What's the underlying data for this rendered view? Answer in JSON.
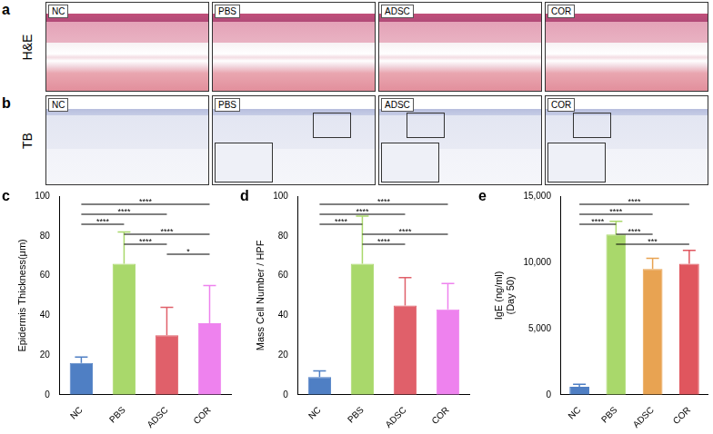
{
  "figure": {
    "rows": [
      {
        "letter": "a",
        "stain": "H&E",
        "panels": [
          "NC",
          "PBS",
          "ADSC",
          "COR"
        ]
      },
      {
        "letter": "b",
        "stain": "TB",
        "panels": [
          "NC",
          "PBS",
          "ADSC",
          "COR"
        ]
      }
    ]
  },
  "chart_data": [
    {
      "panel_label": "c",
      "type": "bar",
      "y_label": "Epidermis Thickness(μm)",
      "categories": [
        "NC",
        "PBS",
        "ADSC",
        "COR"
      ],
      "values": [
        16,
        66,
        30,
        36
      ],
      "errors": [
        3,
        16,
        14,
        19
      ],
      "colors": [
        "#4f7fc4",
        "#a9d86b",
        "#e0606a",
        "#ee82ee"
      ],
      "ylim": [
        0,
        100
      ],
      "yticks": [
        0,
        20,
        40,
        60,
        80,
        100
      ],
      "grid": false,
      "significance": [
        {
          "from": "NC",
          "to": "COR",
          "label": "****"
        },
        {
          "from": "NC",
          "to": "ADSC",
          "label": "****"
        },
        {
          "from": "NC",
          "to": "PBS",
          "label": "****"
        },
        {
          "from": "PBS",
          "to": "COR",
          "label": "****"
        },
        {
          "from": "PBS",
          "to": "ADSC",
          "label": "****"
        },
        {
          "from": "ADSC",
          "to": "COR",
          "label": "*"
        }
      ]
    },
    {
      "panel_label": "d",
      "type": "bar",
      "y_label": "Mass Cell Number / HPF",
      "categories": [
        "NC",
        "PBS",
        "ADSC",
        "COR"
      ],
      "values": [
        9,
        66,
        45,
        43
      ],
      "errors": [
        3,
        24,
        14,
        13
      ],
      "colors": [
        "#4f7fc4",
        "#a9d86b",
        "#e0606a",
        "#ee82ee"
      ],
      "ylim": [
        0,
        100
      ],
      "yticks": [
        0,
        20,
        40,
        60,
        80,
        100
      ],
      "grid": false,
      "significance": [
        {
          "from": "NC",
          "to": "COR",
          "label": "****"
        },
        {
          "from": "NC",
          "to": "ADSC",
          "label": "****"
        },
        {
          "from": "NC",
          "to": "PBS",
          "label": "****"
        },
        {
          "from": "PBS",
          "to": "COR",
          "label": "****"
        },
        {
          "from": "PBS",
          "to": "ADSC",
          "label": "****"
        }
      ]
    },
    {
      "panel_label": "e",
      "type": "bar",
      "y_label": [
        "IgE (ng/ml)",
        "(Day 50)"
      ],
      "categories": [
        "NC",
        "PBS",
        "ADSC",
        "COR"
      ],
      "values": [
        600,
        12100,
        9500,
        9900
      ],
      "errors": [
        200,
        1000,
        800,
        1000
      ],
      "colors": [
        "#4f7fc4",
        "#a9d86b",
        "#e8a352",
        "#e0565e"
      ],
      "ylim": [
        0,
        15000
      ],
      "yticks": [
        0,
        5000,
        10000,
        15000
      ],
      "grid": false,
      "significance": [
        {
          "from": "NC",
          "to": "COR",
          "label": "****"
        },
        {
          "from": "NC",
          "to": "ADSC",
          "label": "****"
        },
        {
          "from": "NC",
          "to": "PBS",
          "label": "****"
        },
        {
          "from": "PBS",
          "to": "ADSC",
          "label": "****"
        },
        {
          "from": "PBS",
          "to": "COR",
          "label": "***"
        }
      ]
    }
  ]
}
